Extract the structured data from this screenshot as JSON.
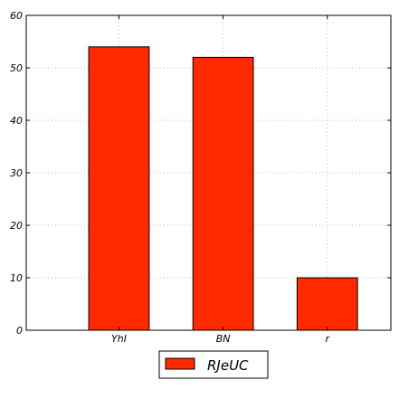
{
  "chart_data": {
    "type": "bar",
    "title": "",
    "xlabel": "",
    "ylabel": "",
    "categories": [
      "YhI",
      "BN",
      "r"
    ],
    "series": [
      {
        "name": "RJeUC",
        "values": [
          54,
          52,
          10
        ],
        "color": "#ff2a00"
      }
    ],
    "ylim": [
      0,
      60
    ],
    "yticks": [
      "0",
      "10",
      "20",
      "30",
      "40",
      "50",
      "60"
    ],
    "ytick_values": [
      0,
      10,
      20,
      30,
      40,
      50,
      60
    ],
    "grid": true,
    "legend_position": "bottom-center"
  }
}
